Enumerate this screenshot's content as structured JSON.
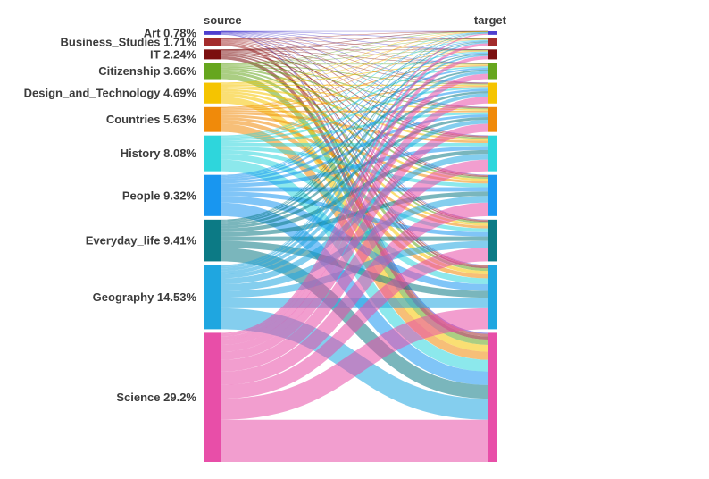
{
  "chart_data": {
    "type": "sankey",
    "source_header": "source",
    "target_header": "target",
    "nodes": [
      {
        "name": "Art",
        "label": "Art 0.78%",
        "percent": 0.78,
        "color": "#4e3fcf"
      },
      {
        "name": "Business_Studies",
        "label": "Business_Studies 1.71%",
        "percent": 1.71,
        "color": "#a32c2c"
      },
      {
        "name": "IT",
        "label": "IT 2.24%",
        "percent": 2.24,
        "color": "#7b0f0f"
      },
      {
        "name": "Citizenship",
        "label": "Citizenship 3.66%",
        "percent": 3.66,
        "color": "#66a61e"
      },
      {
        "name": "Design_and_Technology",
        "label": "Design_and_Technology 4.69%",
        "percent": 4.69,
        "color": "#f5c400"
      },
      {
        "name": "Countries",
        "label": "Countries 5.63%",
        "percent": 5.63,
        "color": "#f08a0a"
      },
      {
        "name": "History",
        "label": "History 8.08%",
        "percent": 8.08,
        "color": "#2ed6dc"
      },
      {
        "name": "People",
        "label": "People 9.32%",
        "percent": 9.32,
        "color": "#1896f0"
      },
      {
        "name": "Everyday_life",
        "label": "Everyday_life 9.41%",
        "percent": 9.41,
        "color": "#0c7a85"
      },
      {
        "name": "Geography",
        "label": "Geography 14.53%",
        "percent": 14.53,
        "color": "#1fa6e0"
      },
      {
        "name": "Science",
        "label": "Science 29.2%",
        "percent": 29.2,
        "color": "#e84ea8"
      }
    ],
    "extra_source_colors": [
      "#8aa8ff",
      "#c44aa0",
      "#a6e3a0",
      "#ff6b8a",
      "#00a020"
    ],
    "target_order": [
      "Art",
      "Business_Studies",
      "IT",
      "Citizenship",
      "Design_and_Technology",
      "Countries",
      "History",
      "People",
      "Everyday_life",
      "Geography",
      "Science"
    ]
  }
}
